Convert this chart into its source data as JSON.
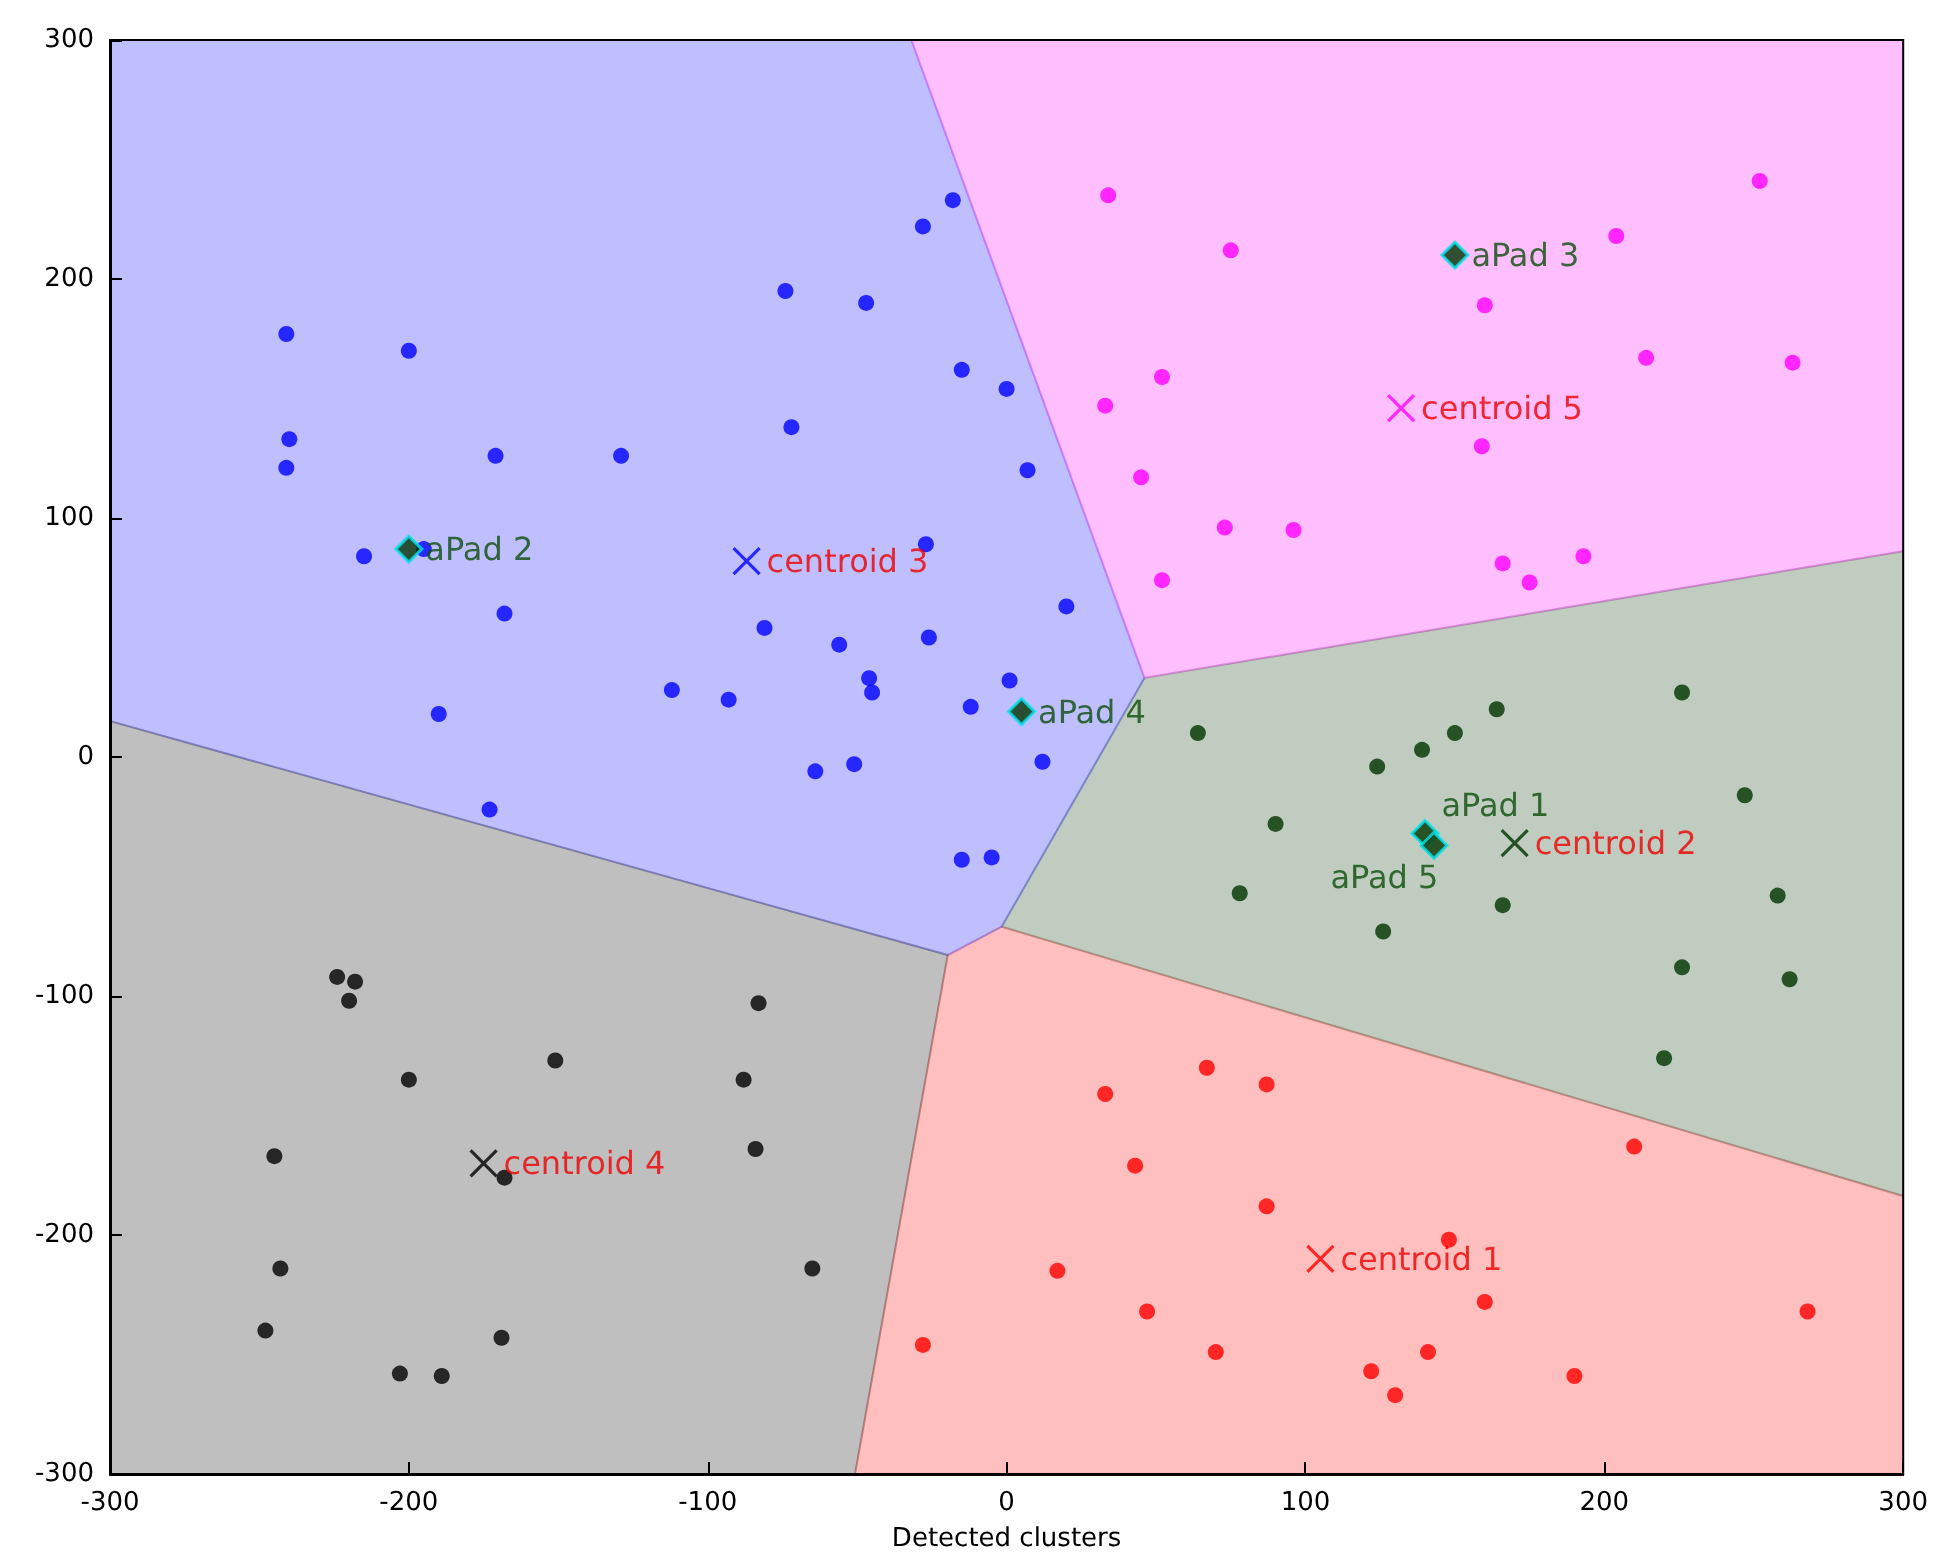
{
  "chart_data": {
    "type": "scatter",
    "xlabel": "Detected clusters",
    "xlim": [
      -300,
      300
    ],
    "ylim": [
      -300,
      300
    ],
    "xticks": [
      -300,
      -200,
      -100,
      0,
      100,
      200,
      300
    ],
    "yticks": [
      -300,
      -200,
      -100,
      0,
      100,
      200,
      300
    ],
    "grid": false,
    "marker": "circle",
    "series": [
      {
        "color": "#0000ff",
        "x": [
          -241,
          -200,
          -240,
          -241,
          -171,
          -129,
          -74,
          -72,
          -47,
          -28,
          -18,
          -15,
          0,
          7,
          -215,
          -195,
          -168,
          -190,
          -173,
          -112,
          -93,
          -81,
          -56,
          -46,
          -45,
          -26,
          -27,
          -12,
          1,
          20,
          -64,
          -51,
          12,
          -15,
          -5
        ],
        "values": [
          177,
          170,
          133,
          121,
          126,
          126,
          195,
          138,
          190,
          222,
          233,
          162,
          154,
          120,
          84,
          87,
          60,
          18,
          -22,
          28,
          24,
          54,
          47,
          33,
          27,
          50,
          89,
          21,
          32,
          63,
          -6,
          -3,
          -2,
          -43,
          -42
        ]
      },
      {
        "color": "#ff00ff",
        "x": [
          34,
          75,
          252,
          204,
          160,
          214,
          263,
          52,
          33,
          159,
          45,
          73,
          96,
          166,
          193,
          175,
          52
        ],
        "values": [
          235,
          212,
          241,
          218,
          189,
          167,
          165,
          159,
          147,
          130,
          117,
          96,
          95,
          81,
          84,
          73,
          74
        ]
      },
      {
        "color": "#003300",
        "x": [
          64,
          124,
          139,
          150,
          164,
          226,
          247,
          90,
          78,
          126,
          166,
          226,
          258,
          262,
          220
        ],
        "values": [
          10,
          -4,
          3,
          10,
          20,
          27,
          -16,
          -28,
          -57,
          -73,
          -62,
          -88,
          -58,
          -93,
          -126
        ]
      },
      {
        "color": "#ff0000",
        "x": [
          33,
          67,
          87,
          43,
          87,
          210,
          17,
          148,
          160,
          47,
          70,
          141,
          -28,
          122,
          130,
          190,
          268
        ],
        "values": [
          -141,
          -130,
          -137,
          -171,
          -188,
          -163,
          -215,
          -202,
          -228,
          -232,
          -249,
          -249,
          -246,
          -257,
          -267,
          -259,
          -232
        ]
      },
      {
        "color": "#000000",
        "x": [
          -224,
          -218,
          -220,
          -200,
          -151,
          -83,
          -88,
          -84,
          -245,
          -168,
          -243,
          -65,
          -248,
          -203,
          -189,
          -169
        ],
        "values": [
          -92,
          -94,
          -102,
          -135,
          -127,
          -103,
          -135,
          -164,
          -167,
          -176,
          -214,
          -214,
          -240,
          -258,
          -259,
          -243
        ]
      },
      {
        "marker": "cross",
        "colors": [
          "#ff0000",
          "#003300",
          "#0000ff",
          "#000000",
          "#ff00ff"
        ],
        "x": [
          105,
          170,
          -87,
          -175,
          132
        ],
        "values": [
          -210,
          -36,
          82,
          -170,
          146
        ],
        "value_labels": [
          "centroid 1",
          "centroid 2",
          "centroid 3",
          "centroid 4",
          "centroid 5"
        ]
      },
      {
        "marker": "diamond",
        "color": "#003300",
        "x": [
          140,
          -200,
          150,
          5,
          143
        ],
        "values": [
          -32,
          87,
          210,
          19,
          -37
        ],
        "value_labels": [
          "aPad 1",
          "aPad 2",
          "aPad 3",
          "aPad 4",
          "aPad 5"
        ]
      }
    ]
  }
}
